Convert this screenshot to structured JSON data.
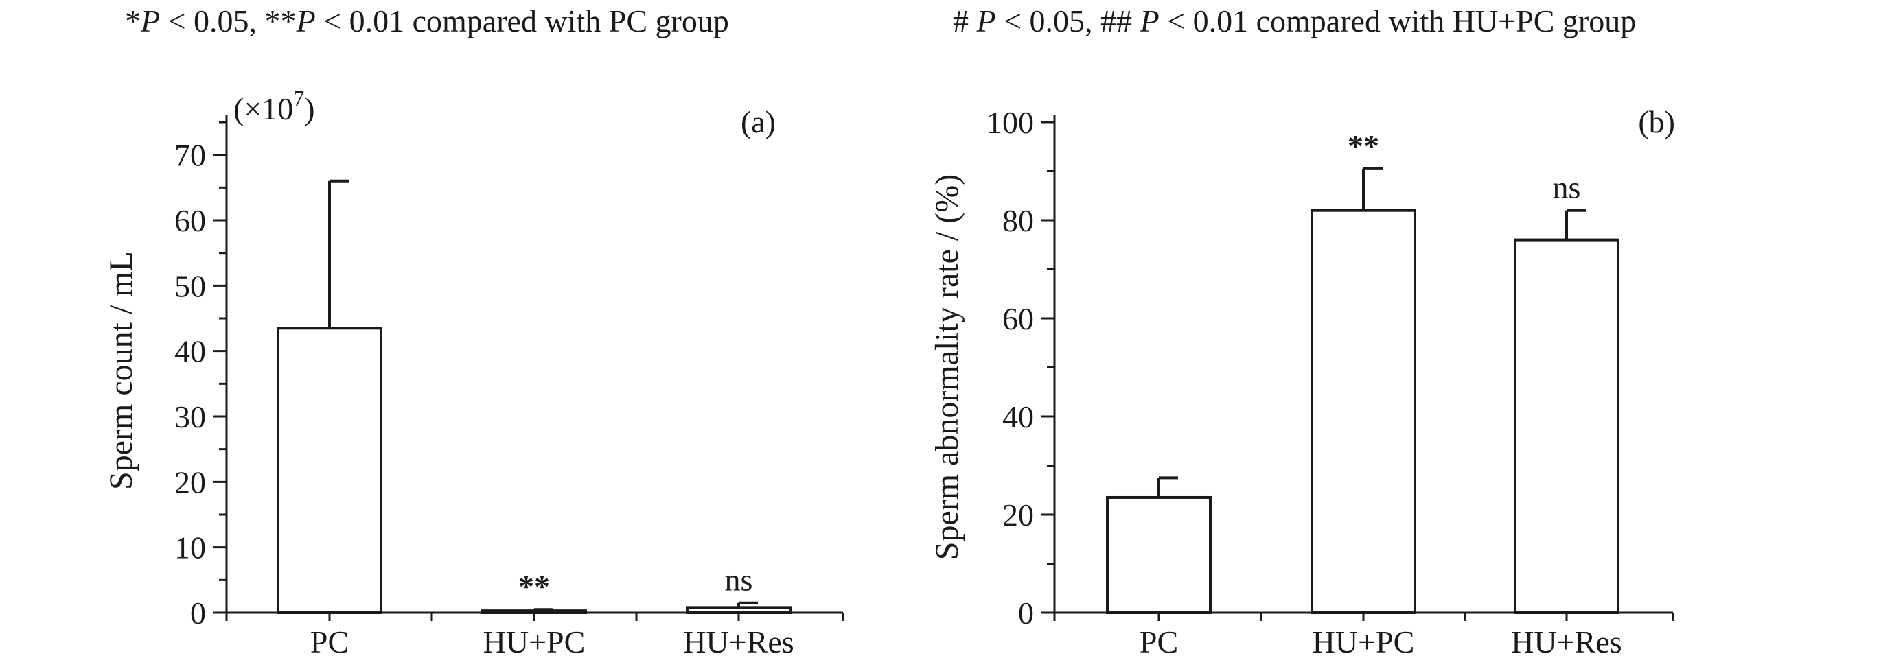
{
  "notes": {
    "left": [
      "*",
      "P",
      " < 0.05, **",
      "P",
      " < 0.01 compared with PC group"
    ],
    "right": [
      "# ",
      "P",
      " < 0.05, ## ",
      "P",
      " < 0.01 compared with HU+PC group"
    ]
  },
  "chart_data": [
    {
      "type": "bar",
      "panel_label": "(a)",
      "ylabel": "Sperm count / mL",
      "y_multiplier": "(×10^7)",
      "ylim": [
        0,
        75
      ],
      "yticks": [
        0,
        10,
        20,
        30,
        40,
        50,
        60,
        70
      ],
      "categories": [
        "PC",
        "HU+PC",
        "HU+Res"
      ],
      "series": [
        {
          "values": [
            43.5,
            0.3,
            0.8
          ],
          "error": [
            22.5,
            0.2,
            0.7
          ]
        }
      ],
      "annotations": [
        "",
        "**",
        "ns"
      ]
    },
    {
      "type": "bar",
      "panel_label": "(b)",
      "ylabel": "Sperm abnormality rate / (%)",
      "ylim": [
        0,
        100
      ],
      "yticks": [
        0,
        20,
        40,
        60,
        80,
        100
      ],
      "categories": [
        "PC",
        "HU+PC",
        "HU+Res"
      ],
      "series": [
        {
          "values": [
            23.5,
            82,
            76
          ],
          "error": [
            4,
            8.5,
            6
          ]
        }
      ],
      "annotations": [
        "",
        "**",
        "ns"
      ]
    }
  ]
}
